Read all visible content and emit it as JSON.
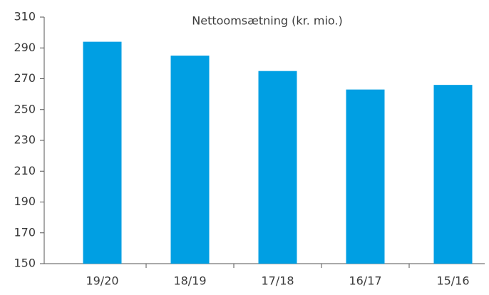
{
  "chart_data": {
    "type": "bar",
    "title": "Nettoomsætning (kr. mio.)",
    "categories": [
      "19/20",
      "18/19",
      "17/18",
      "16/17",
      "15/16"
    ],
    "values": [
      294,
      285,
      275,
      263,
      266
    ],
    "color": "#009fe3",
    "ylim": [
      150,
      310
    ],
    "yticks": [
      150,
      170,
      190,
      210,
      230,
      250,
      270,
      290,
      310
    ],
    "grid": false
  }
}
